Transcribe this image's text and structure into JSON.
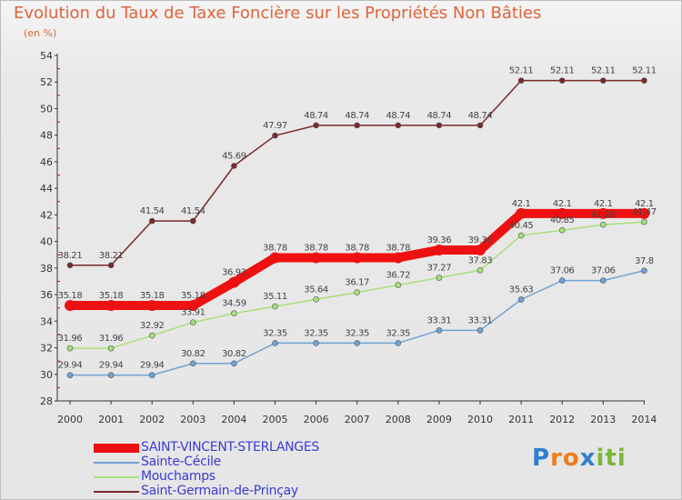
{
  "title": "Evolution du Taux de Taxe Foncière sur les Propriétés Non Bâties",
  "subtitle": "(en %)",
  "logo": {
    "text": "Proxiti",
    "letters": [
      "P",
      "r",
      "o",
      "x",
      "i",
      "t",
      "i"
    ],
    "colors": [
      "#2f7fd0",
      "#f07c1c",
      "#f07c1c",
      "#2f7fd0",
      "#7ab83a",
      "#7ab83a",
      "#7ab83a"
    ]
  },
  "chart_data": {
    "type": "line",
    "x": [
      "2000",
      "2001",
      "2002",
      "2003",
      "2004",
      "2005",
      "2006",
      "2007",
      "2008",
      "2009",
      "2010",
      "2011",
      "2012",
      "2013",
      "2014"
    ],
    "ylim": [
      28,
      54
    ],
    "yticks": [
      28,
      30,
      32,
      34,
      36,
      38,
      40,
      42,
      44,
      46,
      48,
      50,
      52,
      54
    ],
    "grid": false,
    "legend_position": "bottom-left",
    "series": [
      {
        "name": "SAINT-VINCENT-STERLANGES",
        "color": "#ee1111",
        "width": 10,
        "labels": [
          "35.18",
          "35.18",
          "35.18",
          "35.18",
          "36.93",
          "38.78",
          "38.78",
          "38.78",
          "38.78",
          "39.36",
          "39.36",
          "42.1",
          "42.1",
          "42.1",
          "42.1"
        ],
        "values": [
          35.18,
          35.18,
          35.18,
          35.18,
          36.93,
          38.78,
          38.78,
          38.78,
          38.78,
          39.36,
          39.36,
          42.1,
          42.1,
          42.1,
          42.1
        ]
      },
      {
        "name": "Sainte-Cécile",
        "color": "#6fa3d4",
        "width": 1.5,
        "labels": [
          "29.94",
          "29.94",
          "29.94",
          "30.82",
          "30.82",
          "32.35",
          "32.35",
          "32.35",
          "32.35",
          "33.31",
          "33.31",
          "35.63",
          "37.06",
          "37.06",
          "37.8"
        ],
        "values": [
          29.94,
          29.94,
          29.94,
          30.82,
          30.82,
          32.35,
          32.35,
          32.35,
          32.35,
          33.31,
          33.31,
          35.63,
          37.06,
          37.06,
          37.8
        ]
      },
      {
        "name": "Mouchamps",
        "color": "#a6e07a",
        "width": 1.5,
        "labels": [
          "31.96",
          "31.96",
          "32.92",
          "33.91",
          "34.59",
          "35.11",
          "35.64",
          "36.17",
          "36.72",
          "37.27",
          "37.83",
          "40.45",
          "40.85",
          "41.26",
          "41.47"
        ],
        "values": [
          31.96,
          31.96,
          32.92,
          33.91,
          34.59,
          35.11,
          35.64,
          36.17,
          36.72,
          37.27,
          37.83,
          40.45,
          40.85,
          41.26,
          41.47
        ]
      },
      {
        "name": "Saint-Germain-de-Prinçay",
        "color": "#7a2a2a",
        "width": 1.5,
        "labels": [
          "38.21",
          "38.21",
          "41.54",
          "41.54",
          "45.69",
          "47.97",
          "48.74",
          "48.74",
          "48.74",
          "48.74",
          "48.74",
          "52.11",
          "52.11",
          "52.11",
          "52.11"
        ],
        "values": [
          38.21,
          38.21,
          41.54,
          41.54,
          45.69,
          47.97,
          48.74,
          48.74,
          48.74,
          48.74,
          48.74,
          52.11,
          52.11,
          52.11,
          52.11
        ]
      }
    ]
  }
}
